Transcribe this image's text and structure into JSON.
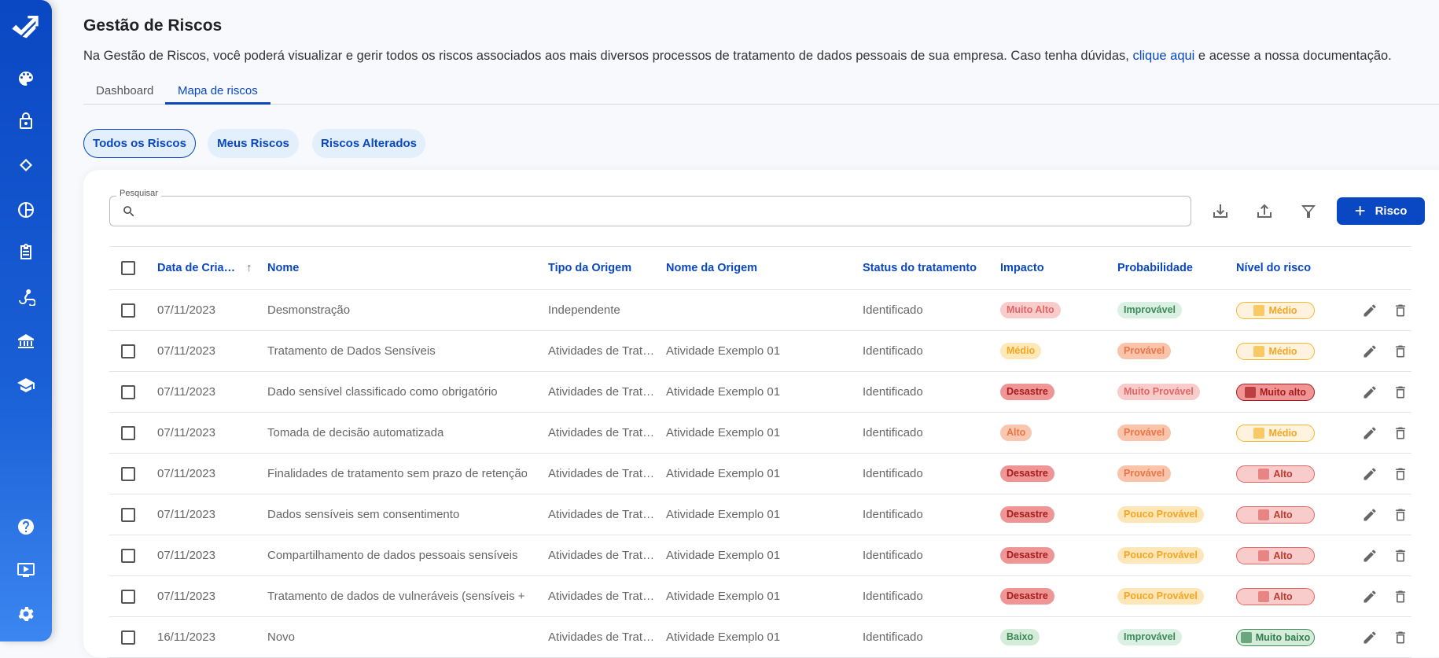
{
  "sidebar": {
    "items": [
      {
        "icon": "logo-icon"
      },
      {
        "icon": "palette-icon"
      },
      {
        "icon": "lock-icon"
      },
      {
        "icon": "handshake-icon"
      },
      {
        "icon": "chart-pie-icon"
      },
      {
        "icon": "clipboard-icon"
      },
      {
        "icon": "webhook-icon"
      },
      {
        "icon": "bank-icon"
      },
      {
        "icon": "school-icon"
      },
      {
        "icon": "help-icon"
      },
      {
        "icon": "video-icon"
      },
      {
        "icon": "settings-icon"
      }
    ]
  },
  "header": {
    "title": "Gestão de Riscos",
    "description_prefix": "Na Gestão de Riscos, você poderá visualizar e gerir todos os riscos associados aos mais diversos processos de tratamento de dados pessoais de sua empresa. Caso tenha dúvidas, ",
    "description_link": "clique aqui",
    "description_suffix": " e acesse a nossa documentação."
  },
  "tabs": [
    {
      "label": "Dashboard",
      "active": false
    },
    {
      "label": "Mapa de riscos",
      "active": true
    }
  ],
  "filters": [
    {
      "label": "Todos os Riscos",
      "active": true
    },
    {
      "label": "Meus Riscos",
      "active": false
    },
    {
      "label": "Riscos Alterados",
      "active": false
    }
  ],
  "search": {
    "label": "Pesquisar",
    "value": "",
    "placeholder": ""
  },
  "toolbar": {
    "add_label": "Risco"
  },
  "colors": {
    "accent": "#0a47c2"
  },
  "table": {
    "columns": [
      "Data de Cria…",
      "Nome",
      "Tipo da Origem",
      "Nome da Origem",
      "Status do tratamento",
      "Impacto",
      "Probabilidade",
      "Nível do risco"
    ],
    "sort": {
      "column": "Data de Cria…",
      "direction": "asc"
    },
    "rows": [
      {
        "date": "07/11/2023",
        "name": "Desmonstração",
        "tipo": "Independente",
        "origem": "",
        "status": "Identificado",
        "impacto": "Muito Alto",
        "prob": "Improvável",
        "nivel": "Médio"
      },
      {
        "date": "07/11/2023",
        "name": "Tratamento de Dados Sensíveis",
        "tipo": "Atividades de Trat…",
        "origem": "Atividade Exemplo 01",
        "status": "Identificado",
        "impacto": "Médio",
        "prob": "Provável",
        "nivel": "Médio"
      },
      {
        "date": "07/11/2023",
        "name": "Dado sensível classificado como obrigatório",
        "tipo": "Atividades de Trat…",
        "origem": "Atividade Exemplo 01",
        "status": "Identificado",
        "impacto": "Desastre",
        "prob": "Muito Provável",
        "nivel": "Muito alto"
      },
      {
        "date": "07/11/2023",
        "name": "Tomada de decisão automatizada",
        "tipo": "Atividades de Trat…",
        "origem": "Atividade Exemplo 01",
        "status": "Identificado",
        "impacto": "Alto",
        "prob": "Provável",
        "nivel": "Médio"
      },
      {
        "date": "07/11/2023",
        "name": "Finalidades de tratamento sem prazo de retenção",
        "tipo": "Atividades de Trat…",
        "origem": "Atividade Exemplo 01",
        "status": "Identificado",
        "impacto": "Desastre",
        "prob": "Provável",
        "nivel": "Alto"
      },
      {
        "date": "07/11/2023",
        "name": "Dados sensíveis sem consentimento",
        "tipo": "Atividades de Trat…",
        "origem": "Atividade Exemplo 01",
        "status": "Identificado",
        "impacto": "Desastre",
        "prob": "Pouco Provável",
        "nivel": "Alto"
      },
      {
        "date": "07/11/2023",
        "name": "Compartilhamento de dados pessoais sensíveis",
        "tipo": "Atividades de Trat…",
        "origem": "Atividade Exemplo 01",
        "status": "Identificado",
        "impacto": "Desastre",
        "prob": "Pouco Provável",
        "nivel": "Alto"
      },
      {
        "date": "07/11/2023",
        "name": "Tratamento de dados de vulneráveis (sensíveis + cr…",
        "tipo": "Atividades de Trat…",
        "origem": "Atividade Exemplo 01",
        "status": "Identificado",
        "impacto": "Desastre",
        "prob": "Pouco Provável",
        "nivel": "Alto"
      },
      {
        "date": "16/11/2023",
        "name": "Novo",
        "tipo": "Atividades de Trat…",
        "origem": "Atividade Exemplo 01",
        "status": "Identificado",
        "impacto": "Baixo",
        "prob": "Improvável",
        "nivel": "Muito baixo"
      }
    ]
  },
  "pill_colors": {
    "Muito Alto": {
      "bg": "#f9cccc",
      "fg": "#e06666"
    },
    "Médio": {
      "bg": "#fde9b8",
      "fg": "#f5a623"
    },
    "Alto": {
      "bg": "#f9c7b0",
      "fg": "#e8764a"
    },
    "Desastre": {
      "bg": "#f09595",
      "fg": "#a51c1c"
    },
    "Baixo": {
      "bg": "#d4ecd9",
      "fg": "#3d8a55"
    },
    "Improvável": {
      "bg": "#d9f0e3",
      "fg": "#3d8a5a"
    },
    "Provável": {
      "bg": "#f9c4aa",
      "fg": "#e8764a"
    },
    "Muito Provável": {
      "bg": "#f9cccc",
      "fg": "#e06666"
    },
    "Pouco Provável": {
      "bg": "#fde6b8",
      "fg": "#f5a623"
    }
  },
  "level_colors": {
    "Médio": {
      "bg": "#fff3e0",
      "border": "#f5b731",
      "fg": "#f5a623"
    },
    "Muito alto": {
      "bg": "#f09595",
      "border": "#a51c1c",
      "fg": "#a51c1c"
    },
    "Alto": {
      "bg": "#f9cccc",
      "border": "#e06666",
      "fg": "#c0392b"
    },
    "Muito baixo": {
      "bg": "#d4ecd9",
      "border": "#3d8a55",
      "fg": "#2e7d4a"
    }
  }
}
